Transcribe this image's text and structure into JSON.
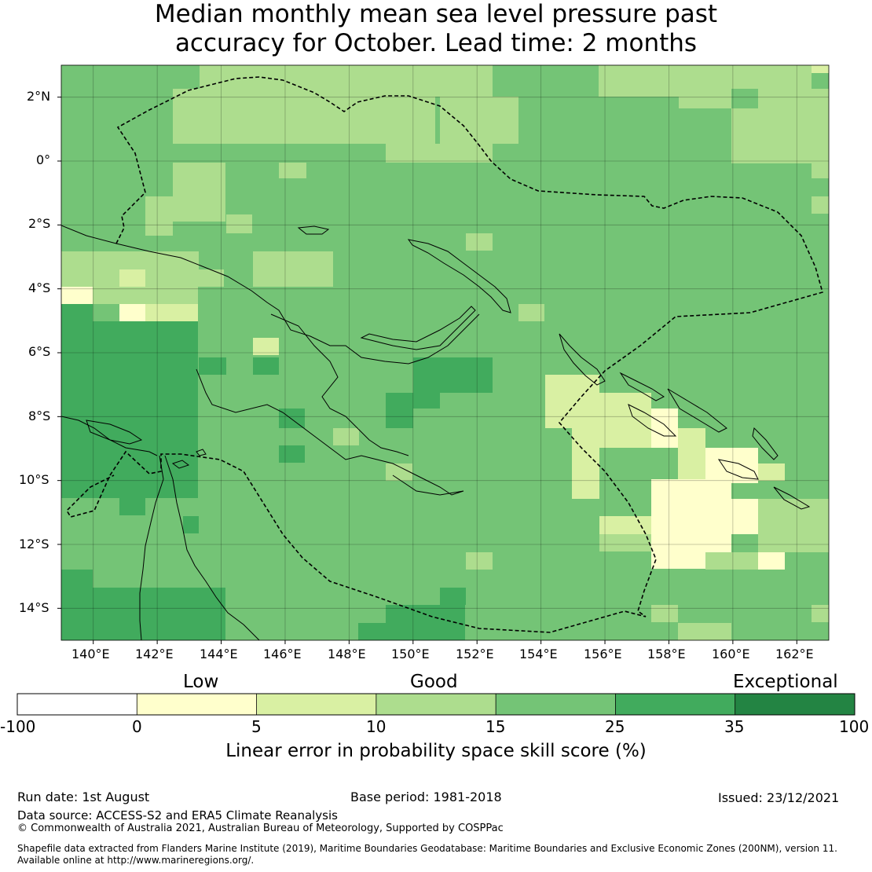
{
  "title": {
    "line1": "Median monthly mean sea level pressure past",
    "line2": "accuracy for October. Lead time: 2 months"
  },
  "map": {
    "lat_ticks": [
      "2°N",
      "0°",
      "2°S",
      "4°S",
      "6°S",
      "8°S",
      "10°S",
      "12°S",
      "14°S"
    ],
    "lon_ticks": [
      "140°E",
      "142°E",
      "144°E",
      "146°E",
      "148°E",
      "150°E",
      "152°E",
      "154°E",
      "156°E",
      "158°E",
      "160°E",
      "162°E"
    ],
    "extent": {
      "lon_min": 139,
      "lon_max": 163,
      "lat_min": -15,
      "lat_max": 3
    },
    "background_color": "#74c476",
    "gridlines": true
  },
  "colorbar": {
    "categories": [
      "Low",
      "Good",
      "Exceptional"
    ],
    "boundaries": [
      "-100",
      "0",
      "5",
      "10",
      "15",
      "25",
      "35",
      "100"
    ],
    "colors": [
      "#ffffff",
      "#ffffcc",
      "#d9f0a3",
      "#addd8e",
      "#74c476",
      "#41ab5d",
      "#238443"
    ],
    "label": "Linear error in probability space skill score (%)"
  },
  "footer": {
    "run_date": "Run date: 1st August",
    "base_period": "Base period: 1981-2018",
    "issued": "Issued: 23/12/2021",
    "data_source": "Data source: ACCESS-S2 and ERA5 Climate Reanalysis",
    "copyright": "© Commonwealth of Australia 2021, Australian Bureau of Meteorology, Supported by COSPPac",
    "shapefile_line1": "Shapefile data extracted from Flanders Marine Institute (2019), Maritime Boundaries Geodatabase: Maritime Boundaries and Exclusive Economic Zones (200NM), version 11.",
    "shapefile_line2": "Available online at http://www.marineregions.org/."
  }
}
